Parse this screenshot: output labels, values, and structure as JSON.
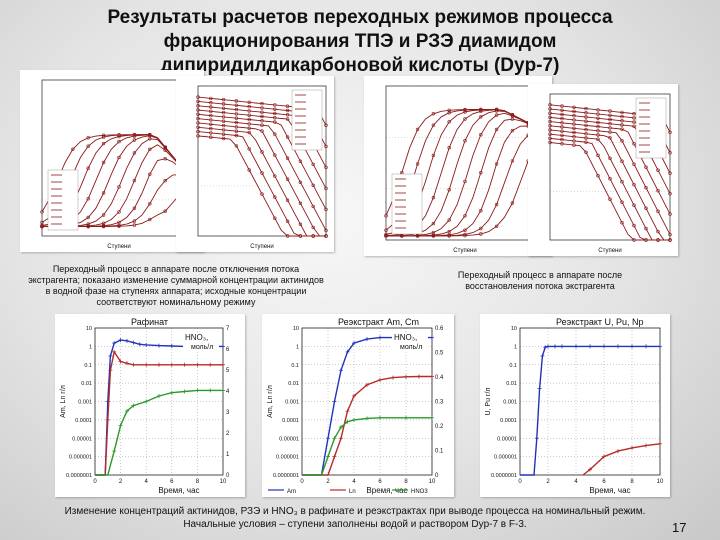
{
  "slide": {
    "title_lines": [
      "Результаты расчетов переходных режимов процесса",
      "фракционирования ТПЭ и РЗЭ диамидом",
      "дипиридилдикарбоновой кислоты (Dyp-7)"
    ],
    "caption_left": "Переходный процесс в аппарате после отключения потока экстрагента; показано изменение суммарной концентрации актинидов в водной фазе на ступенях аппарата; исходные концентрации соответствуют номинальному режиму",
    "caption_right": "Переходный процесс в аппарате после восстановления потока экстрагента",
    "bottom_caption": "Изменение концентраций актинидов, РЗЭ и HNO₃ в рафинате и реэкстрактах при выводе процесса на номинальный режим. Начальные условия – ступени заполнены водой и раствором Dyp-7 в F-3.",
    "page_number": "17",
    "colors": {
      "curve": "#8b1a1a",
      "series_blue": "#2233bb",
      "series_red": "#b52a2a",
      "series_green": "#2a9a2a"
    }
  },
  "chart_data": [
    {
      "type": "line",
      "label": "top-left-a",
      "xlabel": "Ступени",
      "ylabel": "",
      "yscale": "log",
      "ylim": [
        0.05,
        1
      ],
      "xlim": [
        0,
        30
      ],
      "series_count": 10
    },
    {
      "type": "line",
      "label": "top-left-b",
      "xlabel": "Ступени",
      "ylabel": "",
      "yscale": "log",
      "ylim": [
        0.01,
        10
      ],
      "xlim": [
        0,
        30
      ],
      "series_count": 10
    },
    {
      "type": "line",
      "label": "top-right-a",
      "xlabel": "Ступени",
      "ylabel": "",
      "yscale": "log",
      "ylim": [
        0.01,
        10
      ],
      "xlim": [
        0,
        30
      ],
      "series_count": 10
    },
    {
      "type": "line",
      "label": "top-right-b",
      "xlabel": "Ступени",
      "ylabel": "",
      "yscale": "log",
      "ylim": [
        0.01,
        10
      ],
      "xlim": [
        0,
        30
      ],
      "series_count": 10
    },
    {
      "type": "line",
      "label": "bottom-1",
      "title": "Рафинат",
      "xlabel": "Время, час",
      "ylabel": "Am, Ln г/л",
      "right_label": "HNO₃, моль/л",
      "yscale": "log",
      "ylim": [
        1e-07,
        10
      ],
      "y_ticks": [
        "10",
        "1",
        "0.1",
        "0.01",
        "0.001",
        "0.0001",
        "0.00001",
        "0.000001",
        "0.0000001"
      ],
      "y2_ticks": [
        "7",
        "6",
        "5",
        "4",
        "3",
        "2",
        "1",
        "0"
      ],
      "x_ticks": [
        "0",
        "2",
        "4",
        "6",
        "8",
        "10"
      ],
      "xlim": [
        0,
        10
      ],
      "series": [
        {
          "name": "Am",
          "color": "#2233bb",
          "x": [
            0,
            0.8,
            1,
            1.2,
            1.5,
            2,
            2.5,
            3,
            3.5,
            4,
            5,
            6,
            7,
            8,
            9,
            10
          ],
          "y": [
            1e-07,
            1e-07,
            0.001,
            0.3,
            1.5,
            2.2,
            2.0,
            1.6,
            1.3,
            1.2,
            1.1,
            1.05,
            1.0,
            1.0,
            1.0,
            1.0
          ]
        },
        {
          "name": "Ln",
          "color": "#b52a2a",
          "x": [
            0,
            0.8,
            1,
            1.2,
            1.5,
            2,
            2.5,
            3,
            4,
            5,
            6,
            7,
            8,
            9,
            10
          ],
          "y": [
            1e-07,
            1e-07,
            0.0001,
            0.05,
            0.5,
            0.15,
            0.12,
            0.1,
            0.1,
            0.1,
            0.1,
            0.1,
            0.1,
            0.1,
            0.1
          ]
        },
        {
          "name": "HNO3",
          "color": "#2a9a2a",
          "x": [
            0,
            1,
            1.5,
            2,
            2.5,
            3,
            4,
            5,
            6,
            7,
            8,
            9,
            10
          ],
          "y": [
            1e-07,
            1e-07,
            2e-06,
            5e-05,
            0.0003,
            0.0006,
            0.001,
            0.002,
            0.003,
            0.0035,
            0.004,
            0.004,
            0.004
          ]
        }
      ]
    },
    {
      "type": "line",
      "label": "bottom-2",
      "title": "Реэкстракт Am, Cm",
      "xlabel": "Время, час",
      "ylabel": "Am, Ln г/л",
      "right_label": "HNO₃, моль/л",
      "yscale": "log",
      "ylim": [
        1e-07,
        10
      ],
      "y_ticks": [
        "10",
        "1",
        "0.1",
        "0.01",
        "0.001",
        "0.0001",
        "0.00001",
        "0.000001",
        "0.0000001"
      ],
      "y2_ticks": [
        "0.6",
        "0.5",
        "0.4",
        "0.3",
        "0.2",
        "0.1",
        "0"
      ],
      "x_ticks": [
        "0",
        "2",
        "4",
        "6",
        "8",
        "10"
      ],
      "xlim": [
        0,
        10
      ],
      "series": [
        {
          "name": "Am",
          "color": "#2233bb",
          "x": [
            0,
            1.5,
            2,
            2.5,
            3,
            3.5,
            4,
            5,
            6,
            7,
            8,
            9,
            10
          ],
          "y": [
            1e-07,
            1e-07,
            1e-05,
            0.001,
            0.05,
            0.5,
            1.5,
            2.5,
            3,
            3,
            3,
            3,
            3
          ]
        },
        {
          "name": "Ln",
          "color": "#b52a2a",
          "x": [
            0,
            2,
            2.5,
            3,
            3.5,
            4,
            5,
            6,
            7,
            8,
            9,
            10
          ],
          "y": [
            1e-07,
            1e-07,
            1e-06,
            1e-05,
            0.0003,
            0.002,
            0.008,
            0.015,
            0.02,
            0.022,
            0.023,
            0.023
          ]
        },
        {
          "name": "HNO3",
          "color": "#2a9a2a",
          "x": [
            0,
            1.5,
            2,
            2.5,
            3,
            3.5,
            4,
            5,
            6,
            8,
            10
          ],
          "y": [
            1e-07,
            1e-07,
            1e-06,
            1e-05,
            4e-05,
            8e-05,
            0.0001,
            0.00012,
            0.00013,
            0.00013,
            0.00013
          ]
        }
      ],
      "legend": [
        "Am",
        "Ln",
        "HNO3"
      ]
    },
    {
      "type": "line",
      "label": "bottom-3",
      "title": "Реэкстракт U, Pu, Np",
      "xlabel": "Время, час",
      "ylabel": "U, Pu г/л",
      "yscale": "log",
      "ylim": [
        1e-07,
        10
      ],
      "y_ticks": [
        "10",
        "1",
        "0.1",
        "0.01",
        "0.001",
        "0.0001",
        "0.00001",
        "0.000001",
        "0.0000001"
      ],
      "x_ticks": [
        "0",
        "2",
        "4",
        "6",
        "8",
        "10"
      ],
      "xlim": [
        0,
        10
      ],
      "series": [
        {
          "name": "U",
          "color": "#2233bb",
          "x": [
            0,
            1,
            1.2,
            1.4,
            1.6,
            1.8,
            2,
            2.5,
            3,
            4,
            5,
            6,
            7,
            8,
            9,
            10
          ],
          "y": [
            1e-07,
            1e-07,
            1e-05,
            0.005,
            0.3,
            0.9,
            1.0,
            1.0,
            1.0,
            1.0,
            1.0,
            1.0,
            1.0,
            1.0,
            1.0,
            1.0
          ]
        },
        {
          "name": "Pu",
          "color": "#b52a2a",
          "x": [
            4.5,
            5,
            6,
            7,
            8,
            9,
            10
          ],
          "y": [
            1e-07,
            2e-07,
            1e-06,
            2e-06,
            3e-06,
            4e-06,
            5e-06
          ]
        }
      ]
    }
  ]
}
